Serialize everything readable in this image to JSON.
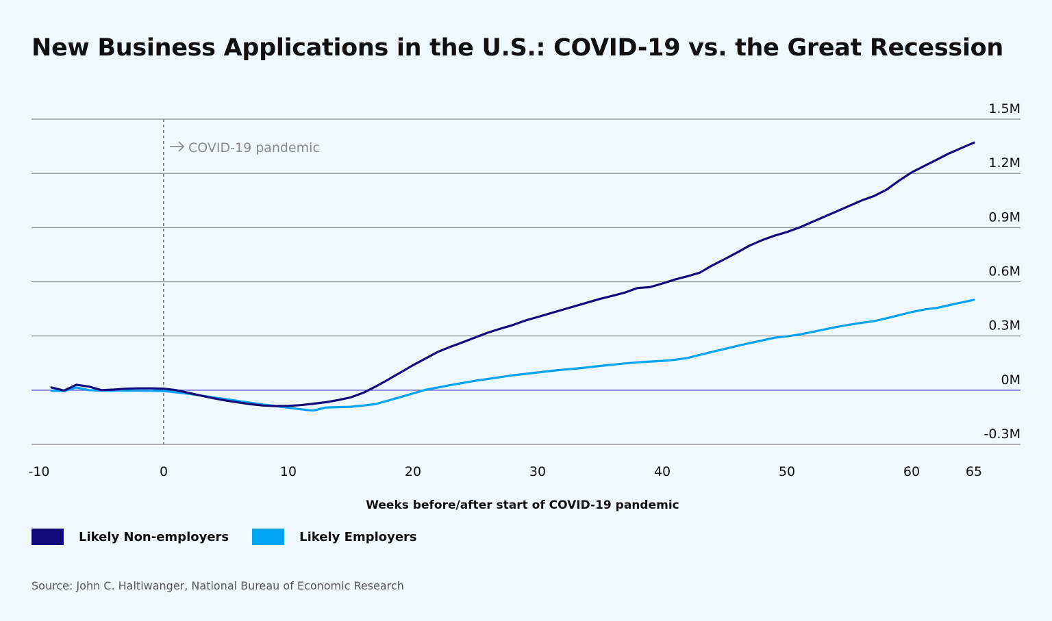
{
  "title": "New Business Applications in the U.S.: COVID-19 vs. the Great Recession",
  "source": "Source: John C. Haltiwanger, National Bureau of Economic Research",
  "chart_data": {
    "type": "line",
    "xlabel": "Weeks before/after start of COVID-19 pandemic",
    "ylabel": "",
    "xlim": [
      -10,
      65
    ],
    "ylim": [
      -0.3,
      1.5
    ],
    "xticks": [
      -10,
      0,
      10,
      20,
      30,
      40,
      50,
      60,
      65
    ],
    "xtick_labels": [
      "-10",
      "0",
      "10",
      "20",
      "30",
      "40",
      "50",
      "60",
      "65"
    ],
    "yticks": [
      1.5,
      1.2,
      0.9,
      0.6,
      0.3,
      0,
      -0.3
    ],
    "ytick_labels": [
      "1.5M",
      "1.2M",
      "0.9M",
      "0.6M",
      "0.3M",
      "0M",
      "-0.3M"
    ],
    "grid": true,
    "legend_position": "bottom-left",
    "annotation": {
      "x": 0,
      "text": "COVID-19 pandemic"
    },
    "series": [
      {
        "name": "Likely Non-employers",
        "color": "#120a7c",
        "x": [
          -9,
          -8,
          -7,
          -6,
          -5,
          -4,
          -3,
          -2,
          -1,
          0,
          1,
          2,
          3,
          4,
          5,
          6,
          7,
          8,
          9,
          10,
          11,
          12,
          13,
          14,
          15,
          16,
          17,
          18,
          19,
          20,
          21,
          22,
          23,
          24,
          25,
          26,
          27,
          28,
          29,
          30,
          31,
          32,
          33,
          34,
          35,
          36,
          37,
          38,
          39,
          40,
          41,
          42,
          43,
          44,
          45,
          46,
          47,
          48,
          49,
          50,
          51,
          52,
          53,
          54,
          55,
          56,
          57,
          58,
          59,
          60,
          61,
          62,
          63,
          64,
          65
        ],
        "values": [
          0.015,
          -0.002,
          0.03,
          0.02,
          0.0,
          0.003,
          0.008,
          0.01,
          0.01,
          0.008,
          0.0,
          -0.015,
          -0.03,
          -0.045,
          -0.058,
          -0.068,
          -0.078,
          -0.085,
          -0.088,
          -0.087,
          -0.083,
          -0.075,
          -0.067,
          -0.055,
          -0.04,
          -0.015,
          0.02,
          0.058,
          0.098,
          0.138,
          0.175,
          0.212,
          0.24,
          0.265,
          0.292,
          0.318,
          0.34,
          0.36,
          0.385,
          0.405,
          0.425,
          0.445,
          0.465,
          0.485,
          0.505,
          0.522,
          0.54,
          0.565,
          0.57,
          0.59,
          0.612,
          0.63,
          0.65,
          0.69,
          0.725,
          0.762,
          0.8,
          0.83,
          0.855,
          0.875,
          0.9,
          0.93,
          0.96,
          0.99,
          1.02,
          1.05,
          1.075,
          1.11,
          1.16,
          1.205,
          1.24,
          1.275,
          1.31,
          1.34,
          1.37
        ]
      },
      {
        "name": "Likely Employers",
        "color": "#00a3f5",
        "x": [
          -9,
          -8,
          -7,
          -6,
          -5,
          -4,
          -3,
          -2,
          -1,
          0,
          1,
          2,
          3,
          4,
          5,
          6,
          7,
          8,
          9,
          10,
          11,
          12,
          13,
          14,
          15,
          16,
          17,
          18,
          19,
          20,
          21,
          22,
          23,
          24,
          25,
          26,
          27,
          28,
          29,
          30,
          31,
          32,
          33,
          34,
          35,
          36,
          37,
          38,
          39,
          40,
          41,
          42,
          43,
          44,
          45,
          46,
          47,
          48,
          49,
          50,
          51,
          52,
          53,
          54,
          55,
          56,
          57,
          58,
          59,
          60,
          61,
          62,
          63,
          64,
          65
        ],
        "values": [
          -0.003,
          -0.005,
          0.015,
          0.0,
          -0.003,
          -0.003,
          -0.002,
          -0.002,
          -0.003,
          -0.005,
          -0.012,
          -0.02,
          -0.03,
          -0.04,
          -0.05,
          -0.06,
          -0.07,
          -0.08,
          -0.088,
          -0.097,
          -0.106,
          -0.113,
          -0.096,
          -0.094,
          -0.092,
          -0.085,
          -0.077,
          -0.058,
          -0.038,
          -0.018,
          0.002,
          0.015,
          0.028,
          0.04,
          0.052,
          0.062,
          0.072,
          0.082,
          0.09,
          0.098,
          0.106,
          0.113,
          0.119,
          0.126,
          0.134,
          0.141,
          0.148,
          0.154,
          0.158,
          0.162,
          0.168,
          0.178,
          0.195,
          0.212,
          0.228,
          0.245,
          0.26,
          0.275,
          0.29,
          0.298,
          0.308,
          0.322,
          0.336,
          0.35,
          0.362,
          0.373,
          0.382,
          0.398,
          0.415,
          0.432,
          0.446,
          0.455,
          0.47,
          0.485,
          0.5
        ]
      }
    ]
  }
}
